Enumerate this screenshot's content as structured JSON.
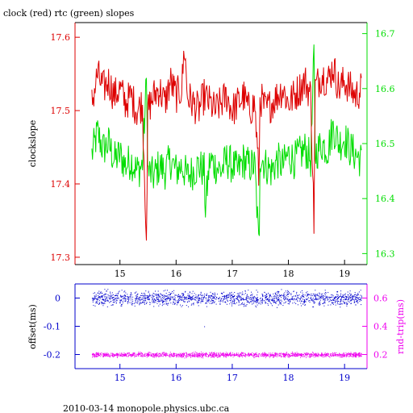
{
  "title": "clock (red) rtc (green) slopes",
  "footer": "2010-03-14 monopole.physics.ubc.ca",
  "colors": {
    "red": "#dd0000",
    "green": "#00dd00",
    "blue": "#0000cc",
    "magenta": "#ee00ee",
    "axis": "#000000"
  },
  "chart_data": [
    {
      "type": "line",
      "title": "clock (red) rtc (green) slopes",
      "ylabel": "clockslope",
      "xlim": [
        14.2,
        19.4
      ],
      "ylim": [
        17.29,
        17.62
      ],
      "y2lim": [
        16.28,
        16.72
      ],
      "xticks": [
        15,
        16,
        17,
        18,
        19
      ],
      "yticks": [
        17.3,
        17.4,
        17.5,
        17.6
      ],
      "y2ticks": [
        16.3,
        16.4,
        16.5,
        16.6,
        16.7
      ],
      "series": [
        {
          "name": "clock (red)",
          "axis": "left",
          "color": "#dd0000",
          "x": [
            14.5,
            14.6,
            14.7,
            14.8,
            14.9,
            15.0,
            15.1,
            15.2,
            15.3,
            15.4,
            15.48,
            15.49,
            15.6,
            15.7,
            15.8,
            15.9,
            16.0,
            16.1,
            16.15,
            16.2,
            16.3,
            16.4,
            16.5,
            16.6,
            16.7,
            16.8,
            16.9,
            17.0,
            17.1,
            17.2,
            17.3,
            17.4,
            17.48,
            17.49,
            17.6,
            17.7,
            17.8,
            17.9,
            18.0,
            18.1,
            18.2,
            18.3,
            18.4,
            18.46,
            18.47,
            18.6,
            18.7,
            18.8,
            18.9,
            19.0,
            19.1,
            19.2,
            19.3
          ],
          "y": [
            17.51,
            17.55,
            17.53,
            17.54,
            17.52,
            17.53,
            17.51,
            17.52,
            17.5,
            17.51,
            17.31,
            17.5,
            17.52,
            17.53,
            17.51,
            17.54,
            17.52,
            17.53,
            17.59,
            17.52,
            17.51,
            17.5,
            17.52,
            17.51,
            17.5,
            17.51,
            17.52,
            17.5,
            17.51,
            17.52,
            17.5,
            17.51,
            17.4,
            17.52,
            17.5,
            17.51,
            17.52,
            17.53,
            17.51,
            17.52,
            17.53,
            17.54,
            17.52,
            17.33,
            17.53,
            17.55,
            17.54,
            17.56,
            17.53,
            17.54,
            17.53,
            17.52,
            17.53
          ]
        },
        {
          "name": "rtc (green)",
          "axis": "right",
          "color": "#00dd00",
          "x": [
            14.5,
            14.6,
            14.7,
            14.8,
            14.9,
            15.0,
            15.1,
            15.2,
            15.3,
            15.4,
            15.48,
            15.49,
            15.6,
            15.7,
            15.8,
            15.9,
            16.0,
            16.1,
            16.2,
            16.3,
            16.4,
            16.5,
            16.52,
            16.6,
            16.7,
            16.8,
            16.9,
            17.0,
            17.1,
            17.2,
            17.3,
            17.4,
            17.48,
            17.49,
            17.6,
            17.7,
            17.8,
            17.9,
            18.0,
            18.1,
            18.2,
            18.3,
            18.4,
            18.46,
            18.47,
            18.6,
            18.7,
            18.8,
            18.9,
            19.0,
            19.1,
            19.2,
            19.3
          ],
          "y": [
            16.48,
            16.52,
            16.49,
            16.5,
            16.47,
            16.48,
            16.46,
            16.47,
            16.45,
            16.46,
            16.63,
            16.45,
            16.44,
            16.46,
            16.45,
            16.47,
            16.45,
            16.46,
            16.44,
            16.45,
            16.46,
            16.45,
            16.38,
            16.47,
            16.46,
            16.45,
            16.47,
            16.46,
            16.45,
            16.47,
            16.46,
            16.46,
            16.3,
            16.48,
            16.46,
            16.45,
            16.47,
            16.46,
            16.48,
            16.47,
            16.48,
            16.49,
            16.47,
            16.68,
            16.48,
            16.5,
            16.49,
            16.53,
            16.5,
            16.51,
            16.49,
            16.48,
            16.47
          ]
        }
      ]
    },
    {
      "type": "scatter",
      "xlim": [
        14.2,
        19.4
      ],
      "ylim": [
        -0.25,
        0.05
      ],
      "y2lim": [
        0.1,
        0.7
      ],
      "ylabel": "offset(ms)",
      "y2label": "rnd-trip(ms)",
      "xticks": [
        15,
        16,
        17,
        18,
        19
      ],
      "yticks": [
        0,
        -0.1,
        -0.2
      ],
      "y2ticks": [
        0.2,
        0.4,
        0.6
      ],
      "series": [
        {
          "name": "offset(ms)",
          "axis": "left",
          "color": "#0000cc",
          "x_range": [
            14.5,
            19.3
          ],
          "center": 0.0,
          "spread": 0.012,
          "outlier": {
            "x": 16.5,
            "y": -0.1
          }
        },
        {
          "name": "rnd-trip(ms)",
          "axis": "right",
          "color": "#ee00ee",
          "x_range": [
            14.5,
            19.3
          ],
          "center": 0.2,
          "spread": 0.008
        }
      ]
    }
  ]
}
